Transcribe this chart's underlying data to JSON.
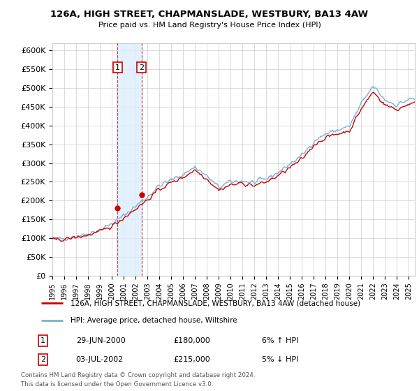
{
  "title": "126A, HIGH STREET, CHAPMANSLADE, WESTBURY, BA13 4AW",
  "subtitle": "Price paid vs. HM Land Registry's House Price Index (HPI)",
  "ylabel_ticks": [
    0,
    50000,
    100000,
    150000,
    200000,
    250000,
    300000,
    350000,
    400000,
    450000,
    500000,
    550000,
    600000
  ],
  "ylabel_labels": [
    "£0",
    "£50K",
    "£100K",
    "£150K",
    "£200K",
    "£250K",
    "£300K",
    "£350K",
    "£400K",
    "£450K",
    "£500K",
    "£550K",
    "£600K"
  ],
  "xmin": 1995.0,
  "xmax": 2025.5,
  "ymin": 0,
  "ymax": 620000,
  "transactions": [
    {
      "id": 1,
      "date": "29-JUN-2000",
      "price": 180000,
      "year": 2000.49,
      "pct": "6%",
      "dir": "↑"
    },
    {
      "id": 2,
      "date": "03-JUL-2002",
      "price": 215000,
      "year": 2002.5,
      "pct": "5%",
      "dir": "↓"
    }
  ],
  "legend_line1": "126A, HIGH STREET, CHAPMANSLADE, WESTBURY, BA13 4AW (detached house)",
  "legend_line2": "HPI: Average price, detached house, Wiltshire",
  "footnote1": "Contains HM Land Registry data © Crown copyright and database right 2024.",
  "footnote2": "This data is licensed under the Open Government Licence v3.0.",
  "hpi_color": "#7bafd4",
  "price_color": "#cc0000",
  "transaction_box_color": "#cc0000",
  "shade_color": "#ddeeff",
  "annual_hpi": [
    1995,
    1996,
    1997,
    1998,
    1999,
    2000,
    2001,
    2002,
    2003,
    2004,
    2005,
    2006,
    2007,
    2008,
    2009,
    2010,
    2011,
    2012,
    2013,
    2014,
    2015,
    2016,
    2017,
    2018,
    2019,
    2020,
    2021,
    2022,
    2023,
    2024,
    2025
  ],
  "annual_hpi_vals": [
    98000,
    100000,
    105000,
    112000,
    122000,
    138000,
    160000,
    185000,
    210000,
    240000,
    255000,
    270000,
    290000,
    265000,
    235000,
    250000,
    252000,
    248000,
    258000,
    275000,
    298000,
    320000,
    358000,
    378000,
    388000,
    398000,
    458000,
    505000,
    468000,
    455000,
    470000
  ],
  "annual_price": [
    1995,
    1996,
    1997,
    1998,
    1999,
    2000,
    2001,
    2002,
    2003,
    2004,
    2005,
    2006,
    2007,
    2008,
    2009,
    2010,
    2011,
    2012,
    2013,
    2014,
    2015,
    2016,
    2017,
    2018,
    2019,
    2020,
    2021,
    2022,
    2023,
    2024,
    2025
  ],
  "annual_price_vals": [
    95000,
    97000,
    102000,
    108000,
    117000,
    132000,
    154000,
    178000,
    202000,
    230000,
    248000,
    262000,
    282000,
    258000,
    228000,
    242000,
    246000,
    240000,
    250000,
    266000,
    288000,
    310000,
    348000,
    368000,
    378000,
    386000,
    445000,
    490000,
    455000,
    442000,
    458000
  ]
}
